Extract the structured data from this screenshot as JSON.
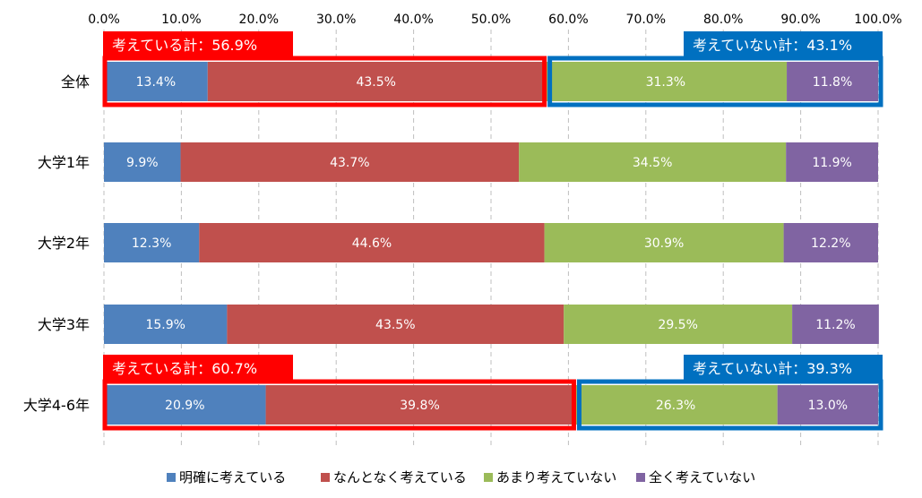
{
  "chart_data": {
    "type": "bar",
    "orientation": "horizontal",
    "stacked": true,
    "xlim": [
      0,
      100
    ],
    "x_tick_labels": [
      "0.0%",
      "10.0%",
      "20.0%",
      "30.0%",
      "40.0%",
      "50.0%",
      "60.0%",
      "70.0%",
      "80.0%",
      "90.0%",
      "100.0%"
    ],
    "grid": "vertical dashed",
    "legend_position": "bottom",
    "categories": [
      "全体",
      "大学1年",
      "大学2年",
      "大学3年",
      "大学4-6年"
    ],
    "series": [
      {
        "name": "明確に考えている",
        "color": "#4f81bd",
        "values": [
          13.4,
          9.9,
          12.3,
          15.9,
          20.9
        ],
        "labels": [
          "13.4%",
          "9.9%",
          "12.3%",
          "15.9%",
          "20.9%"
        ]
      },
      {
        "name": "なんとなく考えている",
        "color": "#c0504d",
        "values": [
          43.5,
          43.7,
          44.6,
          43.5,
          39.8
        ],
        "labels": [
          "43.5%",
          "43.7%",
          "44.6%",
          "43.5%",
          "39.8%"
        ]
      },
      {
        "name": "あまり考えていない",
        "color": "#9bbb59",
        "values": [
          31.3,
          34.5,
          30.9,
          29.5,
          26.3
        ],
        "labels": [
          "31.3%",
          "34.5%",
          "30.9%",
          "29.5%",
          "26.3%"
        ]
      },
      {
        "name": "全く考えていない",
        "color": "#8064a2",
        "values": [
          11.8,
          11.9,
          12.2,
          11.2,
          13.0
        ],
        "labels": [
          "11.8%",
          "11.9%",
          "12.2%",
          "11.2%",
          "13.0%"
        ]
      }
    ],
    "annotations": [
      {
        "category_index": 0,
        "text": "考えている計：56.9%",
        "color": "#ff0000",
        "group": "thinking"
      },
      {
        "category_index": 0,
        "text": "考えていない計：43.1%",
        "color": "#0070c0",
        "group": "not-thinking"
      },
      {
        "category_index": 4,
        "text": "考えている計：60.7%",
        "color": "#ff0000",
        "group": "thinking"
      },
      {
        "category_index": 4,
        "text": "考えていない計：39.3%",
        "color": "#0070c0",
        "group": "not-thinking"
      }
    ]
  }
}
